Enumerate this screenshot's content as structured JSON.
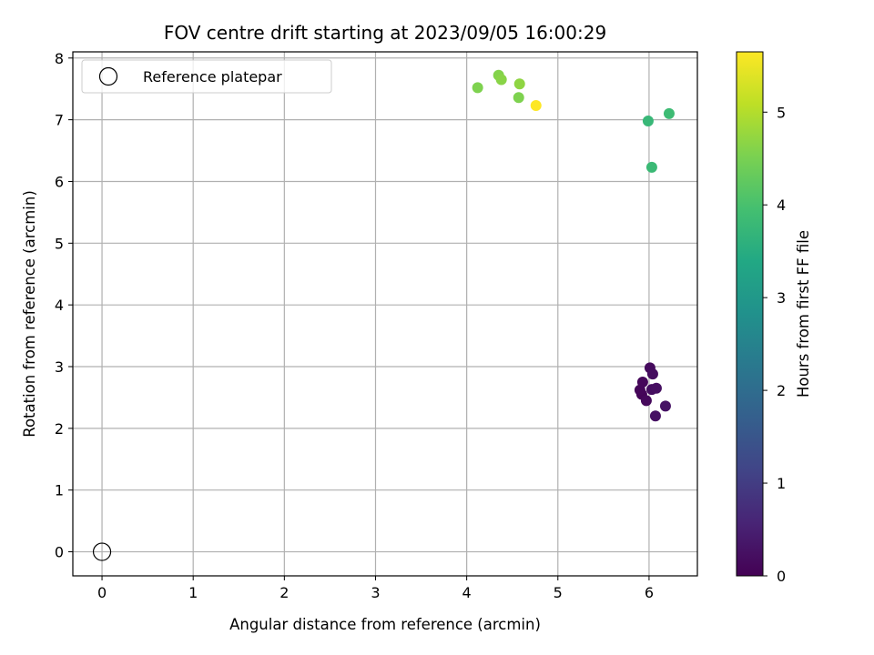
{
  "chart_data": {
    "type": "scatter",
    "title": "FOV centre drift starting at 2023/09/05 16:00:29",
    "xlabel": "Angular distance from reference (arcmin)",
    "ylabel": "Rotation from reference (arcmin)",
    "xlim": [
      -0.32,
      6.53
    ],
    "ylim": [
      -0.39,
      8.1
    ],
    "xticks": [
      0,
      1,
      2,
      3,
      4,
      5,
      6
    ],
    "yticks": [
      0,
      1,
      2,
      3,
      4,
      5,
      6,
      7,
      8
    ],
    "grid": true,
    "legend": {
      "placement": "top-left",
      "entries": [
        "Reference platepar"
      ]
    },
    "reference_point": {
      "name": "Reference platepar",
      "x": 0,
      "y": 0
    },
    "colorbar": {
      "label": "Hours from first FF file",
      "min": 0,
      "max": 5.65,
      "ticks": [
        0,
        1,
        2,
        3,
        4,
        5
      ],
      "colormap": "viridis"
    },
    "points": [
      {
        "x": 5.92,
        "y": 2.55,
        "t": 0.05
      },
      {
        "x": 5.9,
        "y": 2.62,
        "t": 0.08
      },
      {
        "x": 5.93,
        "y": 2.75,
        "t": 0.1
      },
      {
        "x": 5.97,
        "y": 2.45,
        "t": 0.12
      },
      {
        "x": 6.01,
        "y": 2.98,
        "t": 0.15
      },
      {
        "x": 6.04,
        "y": 2.88,
        "t": 0.18
      },
      {
        "x": 6.03,
        "y": 2.63,
        "t": 0.2
      },
      {
        "x": 6.08,
        "y": 2.65,
        "t": 0.22
      },
      {
        "x": 6.07,
        "y": 2.2,
        "t": 0.25
      },
      {
        "x": 6.18,
        "y": 2.36,
        "t": 0.28
      },
      {
        "x": 5.99,
        "y": 6.98,
        "t": 3.75
      },
      {
        "x": 6.03,
        "y": 6.23,
        "t": 3.8
      },
      {
        "x": 6.22,
        "y": 7.1,
        "t": 3.85
      },
      {
        "x": 4.12,
        "y": 7.52,
        "t": 4.55
      },
      {
        "x": 4.35,
        "y": 7.72,
        "t": 4.6
      },
      {
        "x": 4.38,
        "y": 7.65,
        "t": 4.65
      },
      {
        "x": 4.57,
        "y": 7.36,
        "t": 4.55
      },
      {
        "x": 4.58,
        "y": 7.58,
        "t": 4.7
      },
      {
        "x": 4.76,
        "y": 7.23,
        "t": 5.65
      }
    ]
  }
}
